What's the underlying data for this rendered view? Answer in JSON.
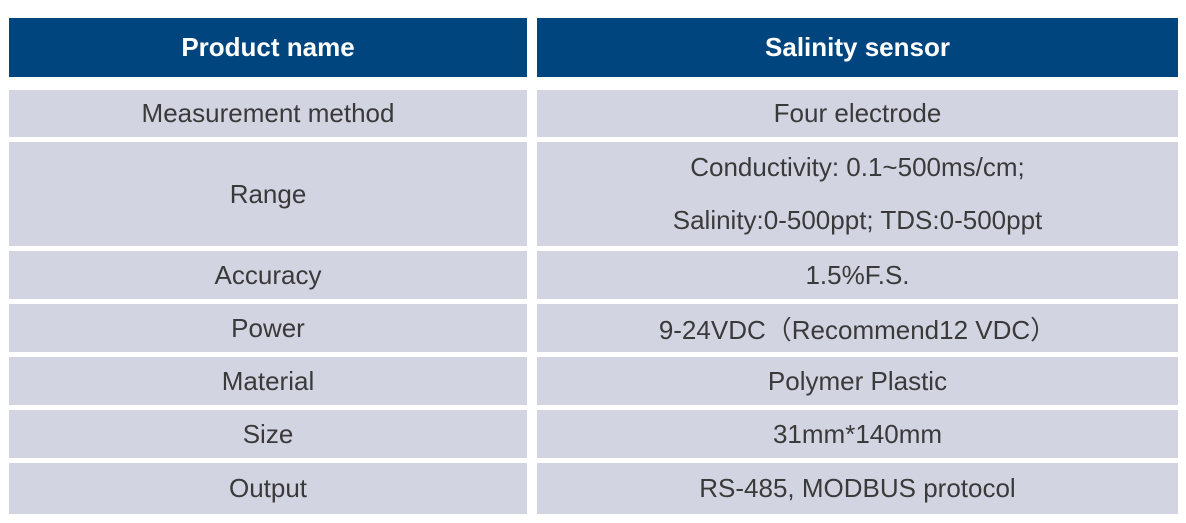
{
  "header": {
    "col1": "Product name",
    "col2": "Salinity sensor"
  },
  "rows": [
    {
      "label": "Measurement method",
      "value": [
        "Four electrode"
      ]
    },
    {
      "label": "Range",
      "value": [
        "Conductivity: 0.1~500ms/cm;",
        "Salinity:0-500ppt; TDS:0-500ppt"
      ]
    },
    {
      "label": "Accuracy",
      "value": [
        "1.5%F.S."
      ]
    },
    {
      "label": "Power",
      "value": [
        "9-24VDC（Recommend12 VDC）"
      ]
    },
    {
      "label": "Material",
      "value": [
        "Polymer Plastic"
      ]
    },
    {
      "label": "Size",
      "value": [
        "31mm*140mm"
      ]
    },
    {
      "label": "Output",
      "value": [
        "RS-485, MODBUS protocol"
      ]
    }
  ],
  "colors": {
    "header_bg": "#00457e",
    "header_text": "#ffffff",
    "row_bg": "#d3d4e2",
    "row_text": "#3a3a3a"
  }
}
